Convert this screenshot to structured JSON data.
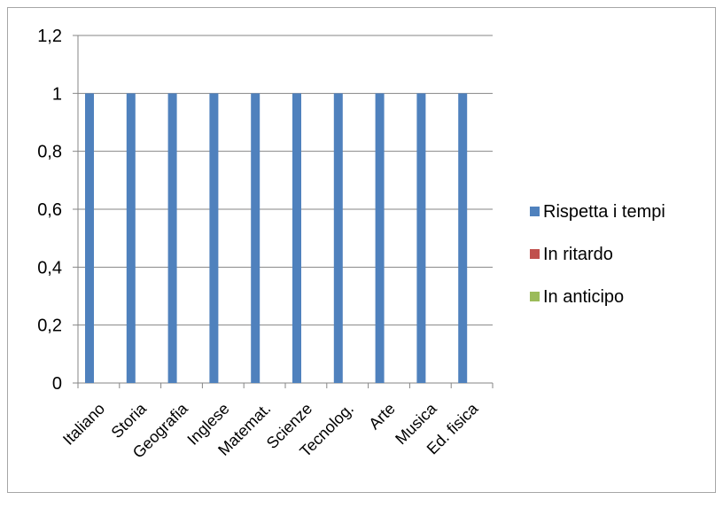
{
  "chart_data": {
    "type": "bar",
    "categories": [
      "Italiano",
      "Storia",
      "Geografia",
      "Inglese",
      "Matemat.",
      "Scienze",
      "Tecnolog.",
      "Arte",
      "Musica",
      "Ed. fisica"
    ],
    "series": [
      {
        "name": "Rispetta i tempi",
        "color": "#4f81bd",
        "values": [
          1,
          1,
          1,
          1,
          1,
          1,
          1,
          1,
          1,
          1
        ]
      },
      {
        "name": "In ritardo",
        "color": "#c0504d",
        "values": [
          0,
          0,
          0,
          0,
          0,
          0,
          0,
          0,
          0,
          0
        ]
      },
      {
        "name": "In anticipo",
        "color": "#9bbb59",
        "values": [
          0,
          0,
          0,
          0,
          0,
          0,
          0,
          0,
          0,
          0
        ]
      }
    ],
    "ylim": [
      0,
      1.2
    ],
    "yticks": [
      "0",
      "0,2",
      "0,4",
      "0,6",
      "0,8",
      "1",
      "1,2"
    ],
    "grid": true,
    "legend_position": "right"
  }
}
